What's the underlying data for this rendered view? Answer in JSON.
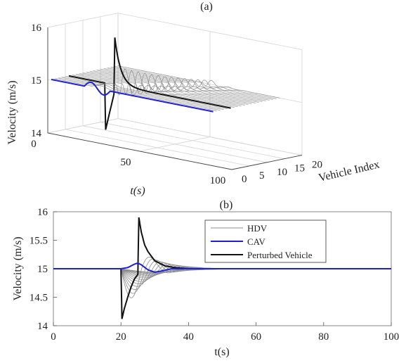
{
  "chart_data": [
    {
      "type": "line",
      "panel_label": "(a)",
      "projection": "3d",
      "xlabel": "t(s)",
      "ylabel": "Vehicle Index",
      "zlabel": "Velocity (m/s)",
      "xlim": [
        0,
        100
      ],
      "ylim": [
        0,
        20
      ],
      "zlim": [
        14,
        16
      ],
      "x_ticks": [
        "0",
        "50",
        "100"
      ],
      "y_ticks": [
        "0",
        "5",
        "10",
        "15",
        "20"
      ],
      "z_ticks": [
        "14",
        "15",
        "16"
      ],
      "grid": true,
      "vehicle_count": 20,
      "cav_index": 1,
      "perturbed_index": 6,
      "perturbation": {
        "time": 20,
        "drop_to": 14.12,
        "recover_time": 25,
        "peak": 15.9,
        "baseline": 15
      },
      "colors": {
        "HDV": "#8c8c8c",
        "CAV": "#1f1fd6",
        "Perturbed Vehicle": "#111111"
      }
    },
    {
      "type": "line",
      "panel_label": "(b)",
      "xlabel": "t(s)",
      "ylabel": "Velocity (m/s)",
      "xlim": [
        0,
        100
      ],
      "ylim": [
        14,
        16
      ],
      "x_ticks": [
        0,
        20,
        40,
        60,
        80,
        100
      ],
      "y_ticks": [
        "14",
        "14.5",
        "15",
        "15.5",
        "16"
      ],
      "grid": false,
      "legend_position": "top-right",
      "series": [
        {
          "name": "HDV",
          "color": "#8c8c8c",
          "width": 0.8
        },
        {
          "name": "CAV",
          "color": "#1f1fd6",
          "width": 2
        },
        {
          "name": "Perturbed Vehicle",
          "color": "#111111",
          "width": 2
        }
      ],
      "perturbed_series": {
        "x": [
          0,
          20,
          20.3,
          21,
          22,
          23,
          24,
          25,
          25.3,
          26,
          27,
          28,
          30,
          33,
          36,
          40,
          45,
          50,
          100
        ],
        "y": [
          15,
          15,
          14.12,
          14.3,
          14.5,
          14.68,
          14.82,
          14.9,
          15.9,
          15.65,
          15.42,
          15.3,
          15.14,
          15.05,
          15.02,
          15.0,
          15.0,
          15.0,
          15.0
        ]
      },
      "cav_series": {
        "x": [
          0,
          20,
          22,
          24,
          25,
          26,
          28,
          30,
          32,
          35,
          40,
          45,
          100
        ],
        "y": [
          15,
          15,
          15.02,
          15.08,
          15.1,
          15.07,
          14.98,
          14.94,
          14.96,
          15.0,
          15.0,
          15.0,
          15.0
        ]
      }
    }
  ]
}
